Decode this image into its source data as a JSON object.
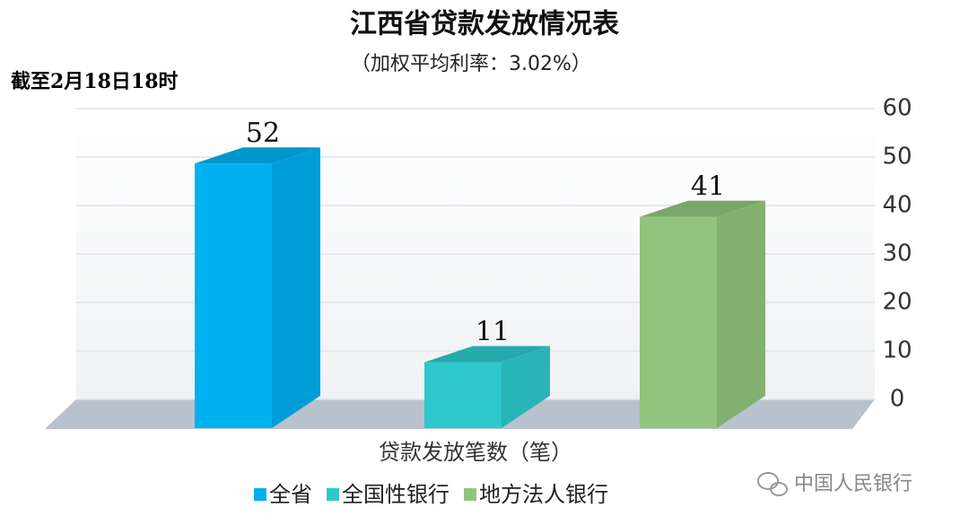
{
  "chart_data": {
    "type": "bar",
    "title": "江西省贷款发放情况表",
    "subtitle": "（加权平均利率：3.02%）",
    "annotation": "截至2月18日18时",
    "x_label": "贷款发放笔数（笔）",
    "watermark": "中国人民银行",
    "categories": [
      null
    ],
    "series": [
      {
        "name": "全省",
        "color": "#00b0f0",
        "values": [
          52
        ]
      },
      {
        "name": "全国性银行",
        "color": "#2ec8cc",
        "values": [
          11
        ]
      },
      {
        "name": "地方法人银行",
        "color": "#92c47d",
        "values": [
          41
        ]
      }
    ],
    "ylim": [
      0,
      60
    ],
    "yticks": [
      0,
      10,
      20,
      30,
      40,
      50,
      60
    ],
    "grid": true,
    "legend": "bottom"
  }
}
